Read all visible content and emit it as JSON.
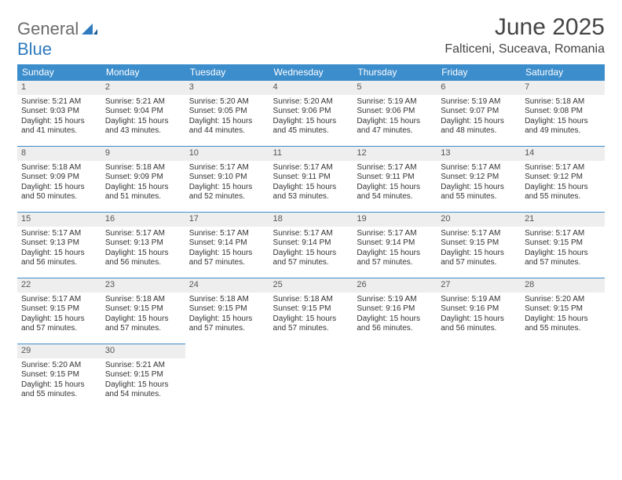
{
  "brand": {
    "line1": "General",
    "line2": "Blue"
  },
  "title": "June 2025",
  "location": "Falticeni, Suceava, Romania",
  "colors": {
    "header_bg": "#3c8dcc",
    "header_text": "#ffffff",
    "daynum_bg": "#eeeeee",
    "daynum_border": "#3c8dcc",
    "body_text": "#333333",
    "logo_gray": "#6b6b6b",
    "logo_blue": "#2f7bbf"
  },
  "weekdays": [
    "Sunday",
    "Monday",
    "Tuesday",
    "Wednesday",
    "Thursday",
    "Friday",
    "Saturday"
  ],
  "weeks": [
    [
      {
        "n": "1",
        "sunrise": "Sunrise: 5:21 AM",
        "sunset": "Sunset: 9:03 PM",
        "day": "Daylight: 15 hours and 41 minutes."
      },
      {
        "n": "2",
        "sunrise": "Sunrise: 5:21 AM",
        "sunset": "Sunset: 9:04 PM",
        "day": "Daylight: 15 hours and 43 minutes."
      },
      {
        "n": "3",
        "sunrise": "Sunrise: 5:20 AM",
        "sunset": "Sunset: 9:05 PM",
        "day": "Daylight: 15 hours and 44 minutes."
      },
      {
        "n": "4",
        "sunrise": "Sunrise: 5:20 AM",
        "sunset": "Sunset: 9:06 PM",
        "day": "Daylight: 15 hours and 45 minutes."
      },
      {
        "n": "5",
        "sunrise": "Sunrise: 5:19 AM",
        "sunset": "Sunset: 9:06 PM",
        "day": "Daylight: 15 hours and 47 minutes."
      },
      {
        "n": "6",
        "sunrise": "Sunrise: 5:19 AM",
        "sunset": "Sunset: 9:07 PM",
        "day": "Daylight: 15 hours and 48 minutes."
      },
      {
        "n": "7",
        "sunrise": "Sunrise: 5:18 AM",
        "sunset": "Sunset: 9:08 PM",
        "day": "Daylight: 15 hours and 49 minutes."
      }
    ],
    [
      {
        "n": "8",
        "sunrise": "Sunrise: 5:18 AM",
        "sunset": "Sunset: 9:09 PM",
        "day": "Daylight: 15 hours and 50 minutes."
      },
      {
        "n": "9",
        "sunrise": "Sunrise: 5:18 AM",
        "sunset": "Sunset: 9:09 PM",
        "day": "Daylight: 15 hours and 51 minutes."
      },
      {
        "n": "10",
        "sunrise": "Sunrise: 5:17 AM",
        "sunset": "Sunset: 9:10 PM",
        "day": "Daylight: 15 hours and 52 minutes."
      },
      {
        "n": "11",
        "sunrise": "Sunrise: 5:17 AM",
        "sunset": "Sunset: 9:11 PM",
        "day": "Daylight: 15 hours and 53 minutes."
      },
      {
        "n": "12",
        "sunrise": "Sunrise: 5:17 AM",
        "sunset": "Sunset: 9:11 PM",
        "day": "Daylight: 15 hours and 54 minutes."
      },
      {
        "n": "13",
        "sunrise": "Sunrise: 5:17 AM",
        "sunset": "Sunset: 9:12 PM",
        "day": "Daylight: 15 hours and 55 minutes."
      },
      {
        "n": "14",
        "sunrise": "Sunrise: 5:17 AM",
        "sunset": "Sunset: 9:12 PM",
        "day": "Daylight: 15 hours and 55 minutes."
      }
    ],
    [
      {
        "n": "15",
        "sunrise": "Sunrise: 5:17 AM",
        "sunset": "Sunset: 9:13 PM",
        "day": "Daylight: 15 hours and 56 minutes."
      },
      {
        "n": "16",
        "sunrise": "Sunrise: 5:17 AM",
        "sunset": "Sunset: 9:13 PM",
        "day": "Daylight: 15 hours and 56 minutes."
      },
      {
        "n": "17",
        "sunrise": "Sunrise: 5:17 AM",
        "sunset": "Sunset: 9:14 PM",
        "day": "Daylight: 15 hours and 57 minutes."
      },
      {
        "n": "18",
        "sunrise": "Sunrise: 5:17 AM",
        "sunset": "Sunset: 9:14 PM",
        "day": "Daylight: 15 hours and 57 minutes."
      },
      {
        "n": "19",
        "sunrise": "Sunrise: 5:17 AM",
        "sunset": "Sunset: 9:14 PM",
        "day": "Daylight: 15 hours and 57 minutes."
      },
      {
        "n": "20",
        "sunrise": "Sunrise: 5:17 AM",
        "sunset": "Sunset: 9:15 PM",
        "day": "Daylight: 15 hours and 57 minutes."
      },
      {
        "n": "21",
        "sunrise": "Sunrise: 5:17 AM",
        "sunset": "Sunset: 9:15 PM",
        "day": "Daylight: 15 hours and 57 minutes."
      }
    ],
    [
      {
        "n": "22",
        "sunrise": "Sunrise: 5:17 AM",
        "sunset": "Sunset: 9:15 PM",
        "day": "Daylight: 15 hours and 57 minutes."
      },
      {
        "n": "23",
        "sunrise": "Sunrise: 5:18 AM",
        "sunset": "Sunset: 9:15 PM",
        "day": "Daylight: 15 hours and 57 minutes."
      },
      {
        "n": "24",
        "sunrise": "Sunrise: 5:18 AM",
        "sunset": "Sunset: 9:15 PM",
        "day": "Daylight: 15 hours and 57 minutes."
      },
      {
        "n": "25",
        "sunrise": "Sunrise: 5:18 AM",
        "sunset": "Sunset: 9:15 PM",
        "day": "Daylight: 15 hours and 57 minutes."
      },
      {
        "n": "26",
        "sunrise": "Sunrise: 5:19 AM",
        "sunset": "Sunset: 9:16 PM",
        "day": "Daylight: 15 hours and 56 minutes."
      },
      {
        "n": "27",
        "sunrise": "Sunrise: 5:19 AM",
        "sunset": "Sunset: 9:16 PM",
        "day": "Daylight: 15 hours and 56 minutes."
      },
      {
        "n": "28",
        "sunrise": "Sunrise: 5:20 AM",
        "sunset": "Sunset: 9:15 PM",
        "day": "Daylight: 15 hours and 55 minutes."
      }
    ],
    [
      {
        "n": "29",
        "sunrise": "Sunrise: 5:20 AM",
        "sunset": "Sunset: 9:15 PM",
        "day": "Daylight: 15 hours and 55 minutes."
      },
      {
        "n": "30",
        "sunrise": "Sunrise: 5:21 AM",
        "sunset": "Sunset: 9:15 PM",
        "day": "Daylight: 15 hours and 54 minutes."
      },
      null,
      null,
      null,
      null,
      null
    ]
  ]
}
